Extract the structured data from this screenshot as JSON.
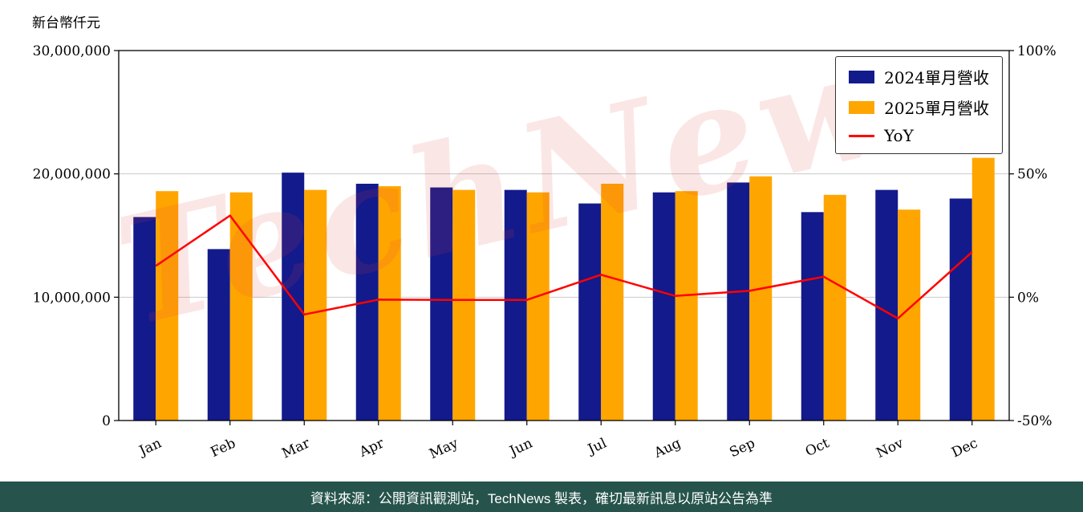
{
  "header": {
    "y_axis_title": "新台幣仟元"
  },
  "watermark": {
    "text": "TechNews",
    "color": "rgba(225, 60, 60, 0.13)"
  },
  "footer": {
    "text": "資料來源：公開資訊觀測站，TechNews 製表，確切最新訊息以原站公告為準",
    "bg_color": "#26544c"
  },
  "chart_data": {
    "type": "bar",
    "title": "",
    "categories": [
      "Jan",
      "Feb",
      "Mar",
      "Apr",
      "May",
      "Jun",
      "Jul",
      "Aug",
      "Sep",
      "Oct",
      "Nov",
      "Dec"
    ],
    "series": [
      {
        "name": "2024單月營收",
        "type": "bar",
        "axis": "left",
        "color": "#131a8b",
        "values": [
          16500000,
          13900000,
          20100000,
          19200000,
          18900000,
          18700000,
          17600000,
          18500000,
          19300000,
          16900000,
          18700000,
          18000000
        ]
      },
      {
        "name": "2025單月營收",
        "type": "bar",
        "axis": "left",
        "color": "#ffa500",
        "values": [
          18600000,
          18500000,
          18700000,
          19000000,
          18700000,
          18500000,
          19200000,
          18600000,
          19800000,
          18300000,
          17100000,
          21300000
        ]
      },
      {
        "name": "YoY",
        "type": "line",
        "axis": "right",
        "color": "#ff0000",
        "values": [
          12.7,
          33.1,
          -7.0,
          -1.0,
          -1.1,
          -1.1,
          9.1,
          0.5,
          2.6,
          8.3,
          -8.6,
          18.3
        ]
      }
    ],
    "left_axis": {
      "label": "新台幣仟元",
      "min": 0,
      "max": 30000000,
      "ticks": [
        0,
        10000000,
        20000000,
        30000000
      ],
      "tick_labels": [
        "0",
        "10,000,000",
        "20,000,000",
        "30,000,000"
      ]
    },
    "right_axis": {
      "label": "",
      "min": -50,
      "max": 100,
      "ticks": [
        -50,
        0,
        50,
        100
      ],
      "tick_labels": [
        "-50%",
        "0%",
        "50%",
        "100%"
      ]
    },
    "grid": true,
    "legend_position": "upper right"
  }
}
